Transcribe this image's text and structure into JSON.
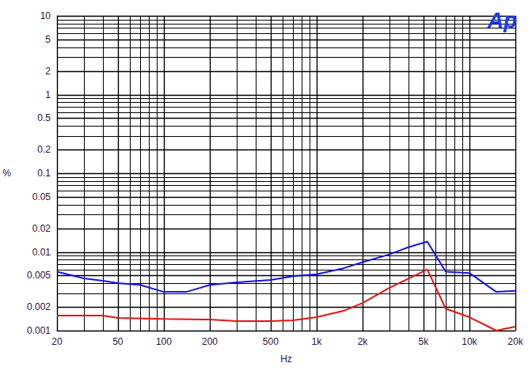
{
  "chart_data": {
    "type": "line",
    "annotation": "Ap",
    "x_label": "Hz",
    "y_label": "%",
    "log": true,
    "grid": true,
    "tick_labels": true,
    "xlim": [
      20,
      20000
    ],
    "ylim": [
      0.001,
      10
    ],
    "xticks": [
      20,
      50,
      100,
      200,
      500,
      {
        "value": 1000,
        "label": "1k"
      },
      {
        "value": 2000,
        "label": "2k"
      },
      {
        "value": 5000,
        "label": "5k"
      },
      {
        "value": 10000,
        "label": "10k"
      },
      {
        "value": 20000,
        "label": "20k"
      }
    ],
    "yticks": [
      0.001,
      0.002,
      0.005,
      0.01,
      0.02,
      0.05,
      0.1,
      0.2,
      0.5,
      1,
      2,
      5,
      10
    ],
    "series": [
      {
        "color": "#1414e6",
        "line_style": "solid",
        "x": [
          20,
          30,
          40,
          50,
          70,
          100,
          140,
          200,
          300,
          500,
          700,
          1000,
          1500,
          2000,
          3000,
          4000,
          5300,
          7000,
          10000,
          15000,
          20000
        ],
        "values": [
          0.0056,
          0.0046,
          0.0043,
          0.004,
          0.0038,
          0.0031,
          0.0031,
          0.0038,
          0.0041,
          0.0044,
          0.0049,
          0.0052,
          0.0062,
          0.0074,
          0.0093,
          0.0115,
          0.0135,
          0.0056,
          0.0054,
          0.0031,
          0.0032
        ]
      },
      {
        "color": "#e61414",
        "line_style": "solid",
        "x": [
          20,
          40,
          50,
          100,
          200,
          300,
          500,
          700,
          1000,
          1500,
          2000,
          3000,
          4000,
          5300,
          7000,
          10000,
          15000,
          20000
        ],
        "values": [
          0.00155,
          0.00155,
          0.00145,
          0.00141,
          0.00138,
          0.00132,
          0.00132,
          0.00135,
          0.00148,
          0.00178,
          0.00224,
          0.0035,
          0.0046,
          0.006,
          0.0019,
          0.00148,
          0.001,
          0.00112
        ]
      }
    ]
  }
}
